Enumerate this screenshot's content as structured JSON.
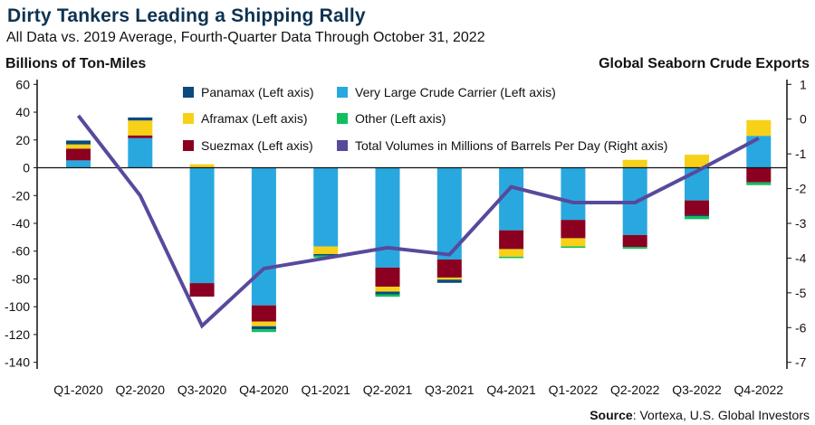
{
  "header": {
    "title": "Dirty Tankers Leading a Shipping Rally",
    "subtitle": "All Data vs. 2019 Average, Fourth-Quarter Data Through October 31, 2022"
  },
  "footer": {
    "source_label": "Source",
    "source_text": ": Vortexa, U.S. Global Investors"
  },
  "chart_data": {
    "type": "bar",
    "stacked": true,
    "title": "Dirty Tankers Leading a Shipping Rally",
    "ylabel": "Billions of Ton-Miles",
    "ylabel_right": "Global Seaborn Crude Exports",
    "ylim": [
      -140,
      60
    ],
    "yticks": [
      60,
      40,
      20,
      0,
      -20,
      -40,
      -60,
      -80,
      -100,
      -120,
      -140
    ],
    "ylim_right": [
      -7,
      1
    ],
    "yticks_right": [
      1,
      0,
      -1,
      -2,
      -3,
      -4,
      -5,
      -6,
      -7
    ],
    "categories": [
      "Q1-2020",
      "Q2-2020",
      "Q3-2020",
      "Q4-2020",
      "Q1-2021",
      "Q2-2021",
      "Q3-2021",
      "Q4-2021",
      "Q1-2022",
      "Q2-2022",
      "Q3-2022",
      "Q4-2022"
    ],
    "series": [
      {
        "name": "Very Large Crude Carrier (Left axis)",
        "color": "#29a8e0",
        "values": [
          5.3,
          21.3,
          -83,
          -99,
          -56.6,
          -71.8,
          -66,
          -45,
          -37.5,
          -48.4,
          -23.5,
          23
        ]
      },
      {
        "name": "Suezmax (Left axis)",
        "color": "#8b0020",
        "values": [
          8.5,
          2,
          -9.7,
          -11.7,
          0,
          -13.8,
          -13,
          -13.5,
          -13.2,
          -8.6,
          -10.6,
          -10.5
        ]
      },
      {
        "name": "Aframax (Left axis)",
        "color": "#f7d117",
        "values": [
          3,
          10.7,
          2.5,
          -3.3,
          -5.5,
          -3.5,
          -1.5,
          -5.5,
          -5.9,
          5.7,
          9.4,
          11.3
        ]
      },
      {
        "name": "Panamax (Left axis)",
        "color": "#0b4a7d",
        "values": [
          2.8,
          2.2,
          0,
          -2.2,
          -1,
          -2,
          -2.3,
          0,
          0,
          0,
          -0.7,
          0
        ]
      },
      {
        "name": "Other (Left axis)",
        "color": "#0fbf5f",
        "values": [
          0,
          0,
          0,
          -2,
          -1.5,
          -1.7,
          0,
          -1,
          -1,
          -1.3,
          -2.2,
          -2
        ]
      }
    ],
    "line": {
      "name": "Total Volumes in Millions of Barrels Per Day (Right axis)",
      "color": "#574a9c",
      "axis": "right",
      "values": [
        0.1,
        -2.2,
        -5.95,
        -4.3,
        -4.0,
        -3.7,
        -3.9,
        -1.95,
        -2.4,
        -2.4,
        -1.5,
        -0.55
      ]
    },
    "legend": [
      "Panamax (Left axis)",
      "Very Large Crude Carrier (Left axis)",
      "Aframax (Left axis)",
      "Other (Left axis)",
      "Suezmax (Left axis)",
      "Total Volumes in Millions of Barrels Per Day (Right axis)"
    ],
    "legend_placement": "top-center",
    "grid": false
  }
}
